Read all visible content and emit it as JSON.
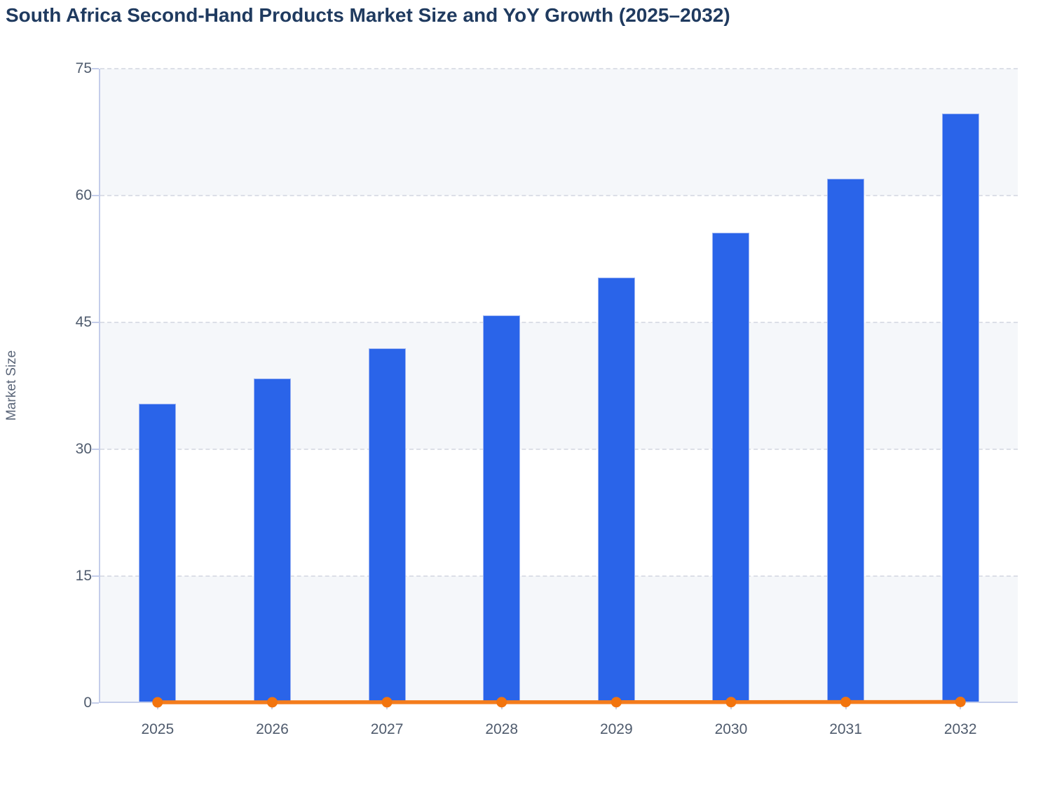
{
  "chart_data": {
    "type": "bar",
    "combo": "bar+line",
    "title": "South Africa Second-Hand Products Market Size and YoY Growth (2025–2032)",
    "ylabel": "Market Size",
    "xlabel": "",
    "categories": [
      "2025",
      "2026",
      "2027",
      "2028",
      "2029",
      "2030",
      "2031",
      "2032"
    ],
    "series": [
      {
        "name": "Market Size",
        "type": "bar",
        "color": "#2a64e9",
        "border_color": "#9db4f3",
        "values": [
          35.4,
          38.4,
          41.9,
          45.8,
          50.3,
          55.6,
          62.0,
          69.7
        ]
      },
      {
        "name": "YoY Growth",
        "type": "line",
        "color": "#f47c1c",
        "marker_color": "#f2740e",
        "note": "growth plotted as decimal fractions on the shared left axis, so the line sits visually at ~0",
        "values": [
          0.08,
          0.085,
          0.091,
          0.093,
          0.098,
          0.105,
          0.115,
          0.124
        ]
      }
    ],
    "ylim": [
      0,
      75
    ],
    "yticks": [
      75,
      60,
      45,
      30,
      15,
      0
    ],
    "grid": "horizontal dashed",
    "legend": "none",
    "colors": {
      "title": "#1f3a5f",
      "tick_label": "#4f5b6d",
      "axis_label": "#5a6578",
      "axis": "#c4cdea",
      "grid": "#dcdfe7",
      "band": "#f5f7fa",
      "band_alt": "#ffffff",
      "background": "#ffffff"
    }
  }
}
